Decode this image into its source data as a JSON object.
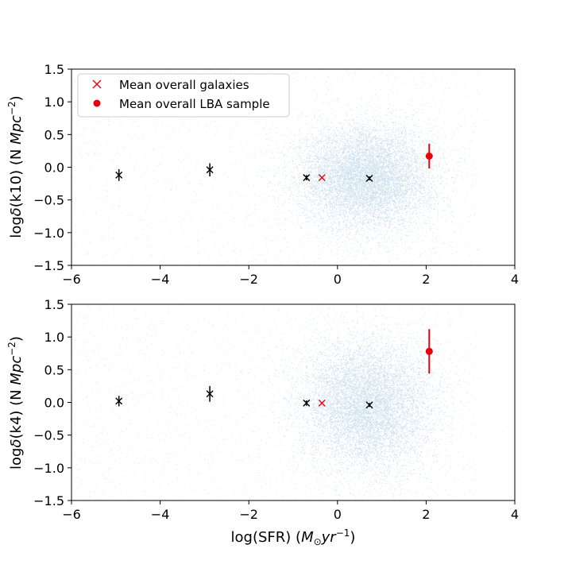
{
  "colors": {
    "cloud": "#1f77b4",
    "mean_galaxies": "#e8000b",
    "lba": "#e8000b",
    "binned": "#000000"
  },
  "chart_data": [
    {
      "type": "scatter",
      "panel": "top",
      "xlabel": "",
      "ylabel_prefix": "log",
      "ylabel_delta": "δ",
      "ylabel_mid": "(k10) (N ",
      "ylabel_unit": "Mpc",
      "ylabel_exp": "−2",
      "ylabel_end": ")",
      "xlim": [
        -6,
        4
      ],
      "ylim": [
        -1.5,
        1.5
      ],
      "xticks": [
        "−6",
        "−4",
        "−2",
        "0",
        "2",
        "4"
      ],
      "yticks": [
        "−1.5",
        "−1.0",
        "−0.5",
        "0.0",
        "0.5",
        "1.0",
        "1.5"
      ],
      "legend": {
        "placement": "top-left",
        "entries": [
          "Mean overall galaxies",
          "Mean overall LBA sample"
        ]
      },
      "cloud": {
        "center": [
          0.65,
          -0.15
        ],
        "spread": [
          0.75,
          0.4
        ]
      },
      "binned_means": [
        {
          "x": -4.93,
          "y": -0.12,
          "yerr": 0.09
        },
        {
          "x": -2.88,
          "y": -0.04,
          "yerr": 0.1
        },
        {
          "x": -0.7,
          "y": -0.16,
          "yerr": 0.04
        },
        {
          "x": 0.72,
          "y": -0.17,
          "yerr": 0.03
        }
      ],
      "mean_overall_galaxies": {
        "x": -0.35,
        "y": -0.16
      },
      "mean_overall_lba": {
        "x": 2.07,
        "y": 0.17,
        "yerr": 0.19
      }
    },
    {
      "type": "scatter",
      "panel": "bottom",
      "xlabel_prefix": "log(SFR) (",
      "xlabel_unit_m": "M",
      "xlabel_sun": "⊙",
      "xlabel_unit_rest": "yr",
      "xlabel_exp": "−1",
      "xlabel_end": ")",
      "ylabel_prefix": "log",
      "ylabel_delta": "δ",
      "ylabel_mid": "(k4) (N ",
      "ylabel_unit": "Mpc",
      "ylabel_exp": "−2",
      "ylabel_end": ")",
      "xlim": [
        -6,
        4
      ],
      "ylim": [
        -1.5,
        1.5
      ],
      "xticks": [
        "−6",
        "−4",
        "−2",
        "0",
        "2",
        "4"
      ],
      "yticks": [
        "−1.5",
        "−1.0",
        "−0.5",
        "0.0",
        "0.5",
        "1.0",
        "1.5"
      ],
      "cloud": {
        "center": [
          0.65,
          -0.05
        ],
        "spread": [
          0.75,
          0.5
        ]
      },
      "binned_means": [
        {
          "x": -4.93,
          "y": 0.02,
          "yerr": 0.08
        },
        {
          "x": -2.88,
          "y": 0.13,
          "yerr": 0.12
        },
        {
          "x": -0.7,
          "y": -0.01,
          "yerr": 0.04
        },
        {
          "x": 0.72,
          "y": -0.04,
          "yerr": 0.03
        }
      ],
      "mean_overall_galaxies": {
        "x": -0.35,
        "y": -0.01
      },
      "mean_overall_lba": {
        "x": 2.07,
        "y": 0.78,
        "yerr": 0.34
      }
    }
  ]
}
